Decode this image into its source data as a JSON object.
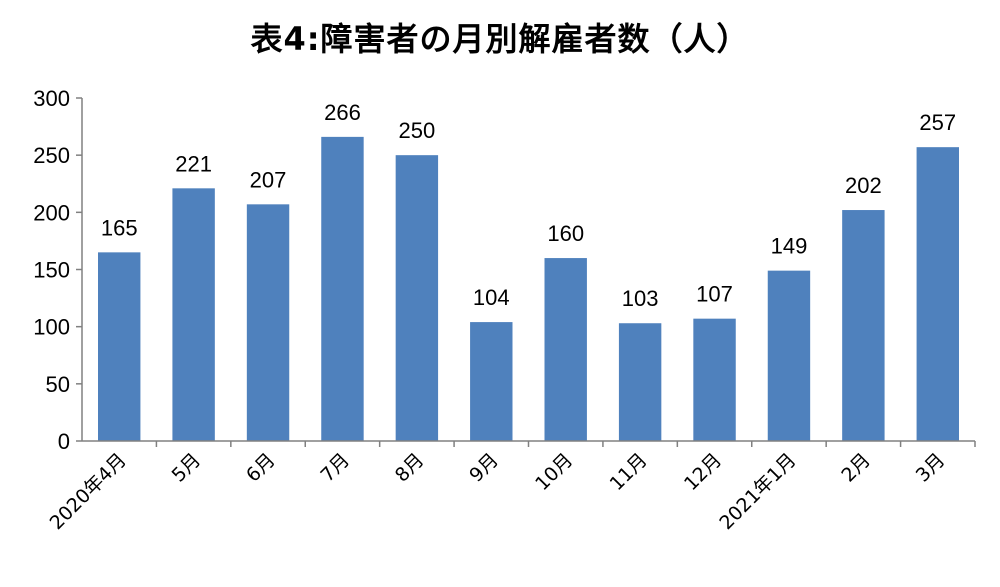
{
  "chart_data": {
    "type": "bar",
    "title": "表4:障害者の月別解雇者数（人）",
    "categories": [
      "2020年4月",
      "5月",
      "6月",
      "7月",
      "8月",
      "9月",
      "10月",
      "11月",
      "12月",
      "2021年1月",
      "2月",
      "3月"
    ],
    "values": [
      165,
      221,
      207,
      266,
      250,
      104,
      160,
      103,
      107,
      149,
      202,
      257
    ],
    "ylim": [
      0,
      300
    ],
    "yticks": [
      0,
      50,
      100,
      150,
      200,
      250,
      300
    ],
    "grid": false,
    "legend": "none",
    "bar_color": "#4f81bd",
    "axis_color": "#808080"
  }
}
